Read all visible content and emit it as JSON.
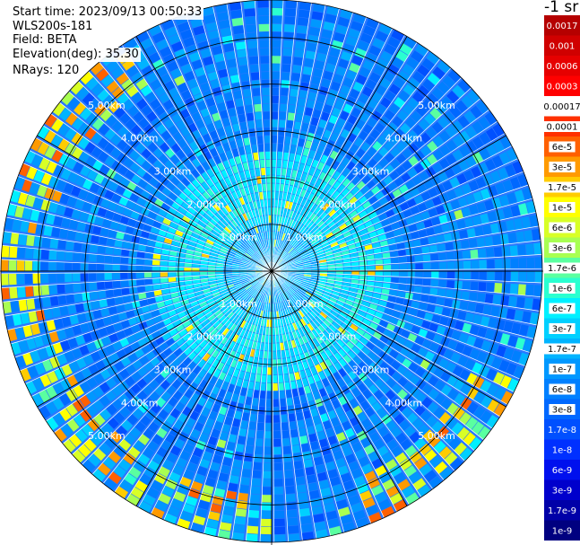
{
  "header": {
    "start_time": "Start time: 2023/09/13 00:50:33",
    "instrument": "WLS200s-181",
    "field": "Field: BETA",
    "elevation": "Elevation(deg): 35.30",
    "nrays": "NRays: 120"
  },
  "chart_data": {
    "type": "heatmap",
    "projection": "polar-ppi",
    "field": "BETA",
    "elevation_deg": 35.3,
    "n_rays": 120,
    "max_range_km": 5.8,
    "range_rings_km": [
      1,
      2,
      3,
      4,
      5
    ],
    "ring_labels": [
      "1.00km",
      "2.00km",
      "3.00km",
      "4.00km",
      "5.00km"
    ],
    "spokes_deg": [
      0,
      30,
      60,
      90,
      120,
      150,
      180,
      210,
      240,
      270,
      300,
      330
    ],
    "colorbar": {
      "unit": "-1 sr",
      "scale": "log",
      "levels": [
        {
          "label": "0.0017",
          "color": "#b50000"
        },
        {
          "label": "0.001",
          "color": "#d00000"
        },
        {
          "label": "0.0006",
          "color": "#e60000"
        },
        {
          "label": "0.0003",
          "color": "#ff0000"
        },
        {
          "label": "0.00017",
          "color": "#ffffff"
        },
        {
          "label": "0.0001",
          "color": "#ff3000"
        },
        {
          "label": "6e-5",
          "color": "#ff6000"
        },
        {
          "label": "3e-5",
          "color": "#ff9a00"
        },
        {
          "label": "1.7e-5",
          "color": "#ffcc00"
        },
        {
          "label": "1e-5",
          "color": "#ffff00"
        },
        {
          "label": "6e-6",
          "color": "#d8ff26"
        },
        {
          "label": "3e-6",
          "color": "#a8ff52"
        },
        {
          "label": "1.7e-6",
          "color": "#5affa0"
        },
        {
          "label": "1e-6",
          "color": "#2affd0"
        },
        {
          "label": "6e-7",
          "color": "#00f0ff"
        },
        {
          "label": "3e-7",
          "color": "#00d0ff"
        },
        {
          "label": "1.7e-7",
          "color": "#00b4ff"
        },
        {
          "label": "1e-7",
          "color": "#0098ff"
        },
        {
          "label": "6e-8",
          "color": "#0080ff"
        },
        {
          "label": "3e-8",
          "color": "#0068ff"
        },
        {
          "label": "1.7e-8",
          "color": "#0050ff"
        },
        {
          "label": "1e-8",
          "color": "#0030ff"
        },
        {
          "label": "6e-9",
          "color": "#0010ee"
        },
        {
          "label": "3e-9",
          "color": "#0000cc"
        },
        {
          "label": "1.7e-9",
          "color": "#0000a8"
        },
        {
          "label": "1e-9",
          "color": "#000080"
        }
      ]
    }
  }
}
